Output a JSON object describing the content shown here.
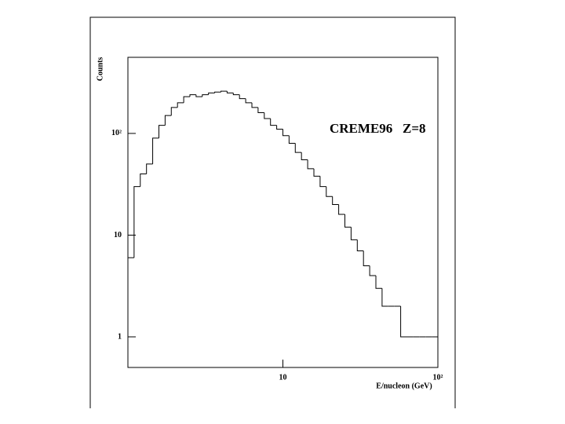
{
  "chart_data": {
    "type": "histogram",
    "annotation": "CREME96   Z=8",
    "xlabel": "E/nucleon (GeV)",
    "ylabel": "Counts",
    "xscale": "log",
    "yscale": "log",
    "bins": [
      1,
      1.096,
      1.202,
      1.318,
      1.445,
      1.585,
      1.738,
      1.905,
      2.089,
      2.291,
      2.512,
      2.754,
      3.02,
      3.311,
      3.631,
      3.981,
      4.365,
      4.786,
      5.248,
      5.754,
      6.31,
      6.918,
      7.586,
      8.318,
      9.12,
      10,
      10.96,
      12.02,
      13.18,
      14.45,
      15.85,
      17.38,
      19.05,
      20.89,
      22.91,
      25.12,
      27.54,
      30.2,
      33.11,
      36.31,
      39.81,
      43.65,
      47.86,
      52.48,
      57.54,
      63.1,
      69.18,
      75.86,
      83.18,
      91.2,
      100
    ],
    "counts": [
      6,
      30,
      40,
      50,
      90,
      120,
      150,
      180,
      200,
      230,
      240,
      230,
      240,
      250,
      255,
      260,
      250,
      240,
      220,
      200,
      180,
      160,
      140,
      120,
      110,
      95,
      80,
      65,
      55,
      45,
      38,
      30,
      24,
      20,
      16,
      12,
      9,
      7,
      5,
      4,
      3,
      2,
      2,
      2,
      1,
      1,
      1,
      1,
      1,
      1
    ],
    "color": "#000000",
    "xlim": [
      1,
      100
    ],
    "ylim": [
      0.5,
      560
    ],
    "xticks": [
      10,
      {
        "value": 100,
        "label": "10²"
      }
    ],
    "yticks": [
      1,
      10,
      {
        "value": 100,
        "label": "10²"
      }
    ]
  }
}
